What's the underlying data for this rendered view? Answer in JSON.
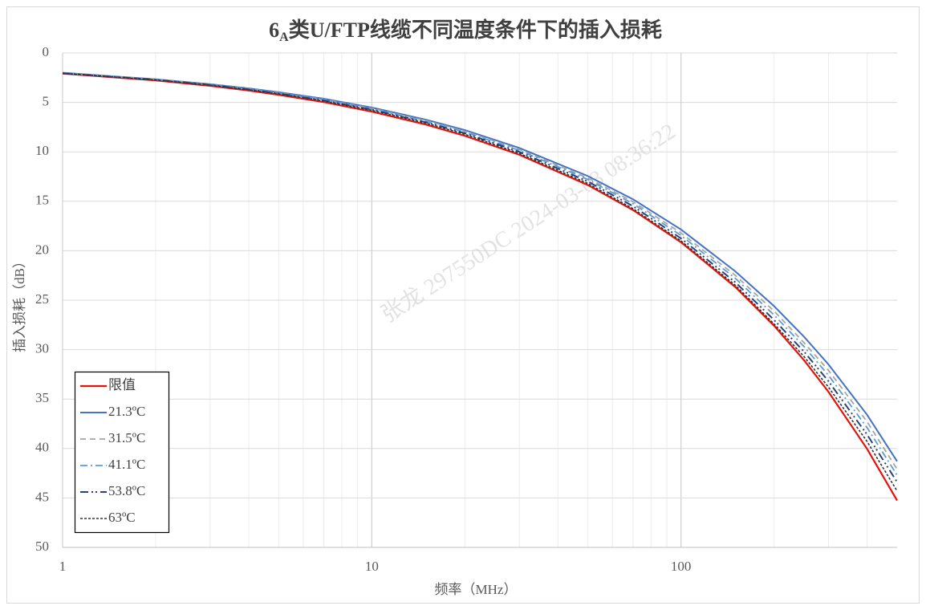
{
  "chart_data": {
    "type": "line",
    "title": [
      "6",
      "A",
      "类U/FTP线缆不同温度条件下的插入损耗"
    ],
    "x_label": "频率（MHz）",
    "y_label": "插入损耗（dB）",
    "watermark": "张龙  297550DC  2024-03-03  08:36:22",
    "x": [
      1,
      2,
      3,
      4,
      5,
      7,
      10,
      15,
      20,
      30,
      50,
      70,
      100,
      150,
      200,
      250,
      300,
      400,
      500
    ],
    "series": [
      {
        "name": "限值",
        "color": "#e3120b",
        "dash": "",
        "width": 2.2,
        "values": [
          2.08,
          2.77,
          3.32,
          3.8,
          4.23,
          4.97,
          5.93,
          7.25,
          8.38,
          10.29,
          13.36,
          15.89,
          19.14,
          23.68,
          27.58,
          31.07,
          34.27,
          40.05,
          45.26
        ]
      },
      {
        "name": "21.3ºC",
        "color": "#4472c4",
        "dash": "",
        "width": 2,
        "values": [
          2.0,
          2.66,
          3.15,
          3.58,
          3.97,
          4.63,
          5.52,
          6.75,
          7.8,
          9.6,
          12.45,
          14.8,
          17.85,
          22.1,
          25.6,
          28.7,
          31.5,
          36.6,
          41.3
        ]
      },
      {
        "name": "31.5ºC",
        "color": "#a5a5a5",
        "dash": "7 5",
        "width": 1.8,
        "values": [
          2.02,
          2.68,
          3.18,
          3.62,
          4.02,
          4.7,
          5.6,
          6.85,
          7.92,
          9.75,
          12.65,
          15.05,
          18.2,
          22.5,
          26.1,
          29.3,
          32.1,
          37.3,
          42.1
        ]
      },
      {
        "name": "41.1ºC",
        "color": "#5b9bd5",
        "dash": "9 4 2 4",
        "width": 1.8,
        "values": [
          2.03,
          2.69,
          3.2,
          3.65,
          4.05,
          4.74,
          5.66,
          6.93,
          8.0,
          9.85,
          12.8,
          15.25,
          18.45,
          22.8,
          26.5,
          29.7,
          32.6,
          37.9,
          42.7
        ]
      },
      {
        "name": "53.8ºC",
        "color": "#264478",
        "dash": "10 4 2 3 2 4",
        "width": 2,
        "values": [
          2.05,
          2.71,
          3.23,
          3.69,
          4.1,
          4.8,
          5.73,
          7.02,
          8.12,
          10.0,
          13.0,
          15.5,
          18.75,
          23.2,
          27.0,
          30.2,
          33.2,
          38.6,
          43.4
        ]
      },
      {
        "name": "63ºC",
        "color": "#333333",
        "dash": "3 2",
        "width": 1.6,
        "values": [
          2.06,
          2.73,
          3.26,
          3.72,
          4.14,
          4.86,
          5.8,
          7.1,
          8.22,
          10.15,
          13.2,
          15.75,
          19.0,
          23.5,
          27.4,
          30.7,
          33.8,
          39.3,
          44.3
        ]
      }
    ],
    "xlim": [
      1,
      500
    ],
    "log_x": true,
    "xticks": [
      1,
      10,
      100
    ],
    "xminor": [
      2,
      3,
      4,
      5,
      6,
      7,
      8,
      9,
      20,
      30,
      40,
      50,
      60,
      70,
      80,
      90,
      200,
      300,
      400
    ],
    "ylim": [
      0,
      50
    ],
    "y_inverted": true,
    "yticks": [
      0,
      5,
      10,
      15,
      20,
      25,
      30,
      35,
      40,
      45,
      50
    ],
    "grid": true,
    "legend": "lower-left"
  }
}
